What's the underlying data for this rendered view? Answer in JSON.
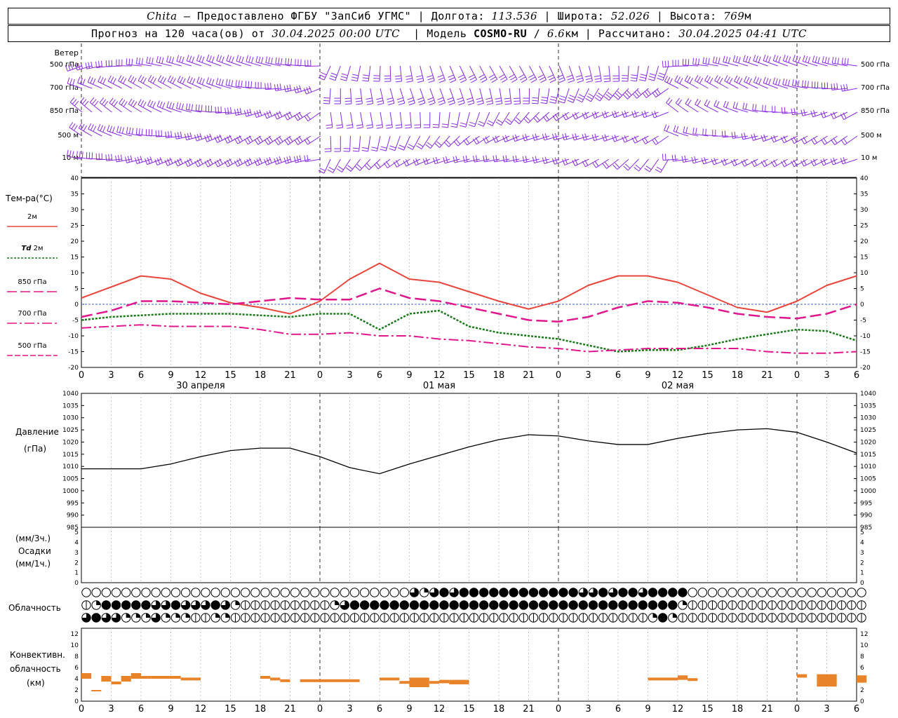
{
  "header": {
    "station": "Chita",
    "dash": " — ",
    "provider": "Предоставлено ФГБУ \"ЗапСиб УГМС\"",
    "sep": " | ",
    "lon_label": "Долгота: ",
    "lon_value": "113.536",
    "lat_label": "Широта: ",
    "lat_value": "52.026",
    "alt_label": "Высота: ",
    "alt_value": "769",
    "alt_unit": "м",
    "forecast_label": "Прогноз на 120 часа(ов) от ",
    "forecast_time": "30.04.2025 00:00 UTC",
    "model_label": "  | Модель ",
    "model_name": "COSMO-RU",
    "model_slash": " / ",
    "model_res": "6.6",
    "model_res_unit": "км",
    "calc_label": " | Рассчитано: ",
    "calc_time": "30.04.2025 04:41 UTC"
  },
  "wind_panel": {
    "title": "Ветер",
    "levels": [
      "500 гПа",
      "700 гПа",
      "850 гПа",
      "500 м",
      "10 м"
    ],
    "color": "#8a2be2"
  },
  "temp_panel": {
    "title": "Тем-ра(°C)",
    "legend": [
      {
        "label": "2м",
        "color": "#e8463c"
      },
      {
        "label_it": "Td",
        "label": "2м",
        "color": "#1a7a1a"
      },
      {
        "label": "850 гПа",
        "color": "#e0178c"
      },
      {
        "label": "700 гПа",
        "color": "#e0178c"
      },
      {
        "label": "500 гПа",
        "color": "#e0178c"
      }
    ],
    "y_ticks": [
      "40",
      "35",
      "30",
      "25",
      "20",
      "15",
      "10",
      "5",
      "0",
      "-5",
      "-10",
      "-15",
      "-20"
    ],
    "x_ticks": [
      "0",
      "3",
      "6",
      "9",
      "12",
      "15",
      "18",
      "21",
      "0",
      "3",
      "6",
      "9",
      "12",
      "15",
      "18",
      "21",
      "0",
      "3",
      "6",
      "9",
      "12",
      "15",
      "18",
      "21",
      "0",
      "3",
      "6"
    ],
    "dates": [
      "30 апреля",
      "01 мая",
      "02 мая"
    ]
  },
  "pressure_panel": {
    "title": "Давление",
    "unit": "(гПа)",
    "y_ticks": [
      "1040",
      "1035",
      "1030",
      "1025",
      "1020",
      "1015",
      "1010",
      "1005",
      "1000",
      "995",
      "990",
      "985"
    ]
  },
  "precip_panel": {
    "unit3": "(мм/3ч.)",
    "title": "Осадки",
    "unit1": "(мм/1ч.)",
    "y_ticks": [
      "5",
      "4",
      "3",
      "2",
      "1",
      "0"
    ]
  },
  "cloud_panel": {
    "title": "Облачность"
  },
  "conv_panel": {
    "title1": "Конвективн.",
    "title2": "облачность",
    "unit": "(км)",
    "y_ticks": [
      "12",
      "10",
      "8",
      "6",
      "4",
      "2",
      "0"
    ],
    "x_ticks": [
      "0",
      "3",
      "6",
      "9",
      "12",
      "15",
      "18",
      "21",
      "0",
      "3",
      "6",
      "9",
      "12",
      "15",
      "18",
      "21",
      "0",
      "3",
      "6",
      "9",
      "12",
      "15",
      "18",
      "21",
      "0",
      "3",
      "6"
    ],
    "color": "#e8832a"
  },
  "chart_data": {
    "type": "line",
    "x_unit": "hours since 30.04.2025 00:00 UTC",
    "x": [
      0,
      3,
      6,
      9,
      12,
      15,
      18,
      21,
      24,
      27,
      30,
      33,
      36,
      39,
      42,
      45,
      48,
      51,
      54,
      57,
      60,
      63,
      66,
      69,
      72,
      75,
      78
    ],
    "xlim": [
      0,
      78
    ],
    "series": [
      {
        "name": "2м",
        "panel": "temperature",
        "color": "#e8463c",
        "values": [
          2,
          5.5,
          9,
          8,
          3.5,
          0.5,
          -1,
          -3,
          1,
          8,
          13,
          8,
          7,
          4,
          1,
          -1.5,
          1,
          6,
          9,
          9,
          7,
          3,
          -1,
          -2.5,
          1,
          6,
          9
        ]
      },
      {
        "name": "Td 2м",
        "panel": "temperature",
        "color": "#1a7a1a",
        "values": [
          -5,
          -4,
          -3.5,
          -3,
          -3,
          -3,
          -3.5,
          -4,
          -3,
          -3,
          -8,
          -3,
          -2,
          -7,
          -9,
          -10,
          -11,
          -13,
          -15,
          -14.5,
          -14.5,
          -13,
          -11,
          -9.5,
          -8,
          -8.5,
          -11.5
        ]
      },
      {
        "name": "850 гПа",
        "panel": "temperature",
        "color": "#e0178c",
        "values": [
          -4,
          -2,
          1,
          1,
          0.5,
          0,
          1,
          2,
          1.5,
          1.5,
          5,
          2,
          1,
          -1,
          -3,
          -5,
          -5.5,
          -4,
          -1,
          1,
          0.5,
          -1,
          -3,
          -4,
          -4.5,
          -3,
          0
        ]
      },
      {
        "name": "700 гПа",
        "panel": "temperature",
        "color": "#e0178c",
        "values": [
          -7.5,
          -7,
          -6.5,
          -7,
          -7,
          -7,
          -8,
          -9.5,
          -9.5,
          -9,
          -10,
          -10,
          -11,
          -11.5,
          -12.5,
          -13.5,
          -14,
          -15,
          -14.5,
          -14,
          -14,
          -14,
          -14,
          -15,
          -15.5,
          -15.5,
          -15
        ]
      },
      {
        "name": "Давление",
        "panel": "pressure",
        "color": "#000000",
        "values": [
          1009,
          1009,
          1009,
          1011,
          1014,
          1016.5,
          1017.5,
          1017.5,
          1014,
          1009.5,
          1007,
          1011,
          1014.5,
          1018,
          1021,
          1023,
          1022.5,
          1020.5,
          1019,
          1019,
          1021.5,
          1023.5,
          1025,
          1025.5,
          1024,
          1020,
          1015.5
        ]
      }
    ],
    "ylim_temperature": [
      -20,
      40
    ],
    "ylim_pressure": [
      985,
      1040
    ],
    "precipitation": {
      "unit": "мм",
      "ylim": [
        0,
        5.5
      ],
      "values": []
    },
    "cloud_cover": {
      "levels": [
        "high",
        "middle",
        "low"
      ],
      "hourly_step": 1,
      "high": "00000000000000000000000000000000032343444444444444334344344440000000000000000000000000000000000000000000000000000000",
      "middle": "12444443343334321111111112344444444444444444444444444444444421111111111111111111111111111111111124411222212123334444344334",
      "low": "34332223222112211111111111111111111111111111111111111111124211111111111111111111111111111111111111111111111111111111"
    },
    "convective_cloud": {
      "unit": "км",
      "ylim": [
        0,
        13
      ],
      "segments": [
        [
          0,
          1,
          4,
          5
        ],
        [
          1,
          2,
          1.8,
          2
        ],
        [
          2,
          3,
          3.5,
          4.5
        ],
        [
          3,
          4,
          3,
          3.5
        ],
        [
          4,
          5,
          3.5,
          4.5
        ],
        [
          5,
          6,
          4,
          5
        ],
        [
          6,
          7,
          4,
          4.5
        ],
        [
          7,
          10,
          4,
          4.5
        ],
        [
          10,
          12,
          3.7,
          4.2
        ],
        [
          18,
          19,
          4,
          4.5
        ],
        [
          19,
          20,
          3.7,
          4.2
        ],
        [
          20,
          21,
          3.4,
          3.9
        ],
        [
          22,
          28,
          3.4,
          3.9
        ],
        [
          30,
          32,
          3.7,
          4.2
        ],
        [
          32,
          33,
          3.1,
          3.6
        ],
        [
          33,
          35,
          2.5,
          4.2
        ],
        [
          35,
          36,
          3.1,
          3.6
        ],
        [
          36,
          37,
          3.2,
          3.8
        ],
        [
          37,
          39,
          3,
          3.8
        ],
        [
          57,
          60,
          3.7,
          4.2
        ],
        [
          60,
          61,
          3.8,
          4.6
        ],
        [
          61,
          62,
          3.6,
          4.1
        ],
        [
          72,
          73,
          4.2,
          4.8
        ],
        [
          74,
          76,
          2.6,
          4.8
        ],
        [
          78,
          79,
          3.3,
          4.6
        ]
      ]
    }
  }
}
